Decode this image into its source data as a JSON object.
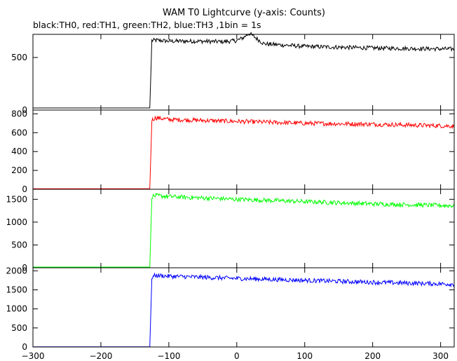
{
  "chart_data": {
    "type": "line",
    "title": "WAM T0 Lightcurve (y-axis: Counts)",
    "subtitle": "black:TH0, red:TH1, green:TH2, blue:TH3 ,1bin = 1s",
    "xlim": [
      -300,
      320
    ],
    "x_ticks": [
      -300,
      -200,
      -100,
      0,
      100,
      200,
      300
    ],
    "x_tick_labels": [
      "−300",
      "−200",
      "−100",
      "0",
      "100",
      "200",
      "300"
    ],
    "grid": false,
    "panels": [
      {
        "name": "TH0",
        "color": "#000000",
        "ylim": [
          0,
          720
        ],
        "y_ticks": [
          0,
          500
        ],
        "y_tick_labels": [
          "0",
          "500"
        ],
        "x": [
          -300,
          -128,
          -125,
          -120,
          -100,
          -60,
          -20,
          0,
          10,
          18,
          25,
          40,
          100,
          200,
          320
        ],
        "y": [
          20,
          20,
          660,
          665,
          655,
          655,
          650,
          660,
          690,
          730,
          700,
          630,
          605,
          590,
          580
        ]
      },
      {
        "name": "TH1",
        "color": "#ff0000",
        "ylim": [
          0,
          840
        ],
        "y_ticks": [
          0,
          200,
          400,
          600,
          800
        ],
        "y_tick_labels": [
          "0",
          "200",
          "400",
          "600",
          "800"
        ],
        "x": [
          -300,
          -128,
          -125,
          -120,
          -100,
          0,
          100,
          200,
          320
        ],
        "y": [
          5,
          5,
          730,
          760,
          740,
          720,
          700,
          690,
          670
        ]
      },
      {
        "name": "TH2",
        "color": "#00ff00",
        "ylim": [
          0,
          1720
        ],
        "y_ticks": [
          0,
          500,
          1000,
          1500
        ],
        "y_tick_labels": [
          "0",
          "500",
          "1000",
          "1500"
        ],
        "x": [
          -300,
          -128,
          -125,
          -120,
          -100,
          0,
          100,
          200,
          320
        ],
        "y": [
          15,
          15,
          1560,
          1580,
          1560,
          1500,
          1450,
          1400,
          1360
        ]
      },
      {
        "name": "TH3",
        "color": "#0000ff",
        "ylim": [
          0,
          2080
        ],
        "y_ticks": [
          0,
          500,
          1000,
          1500,
          2000
        ],
        "y_tick_labels": [
          "0",
          "500",
          "1000",
          "1500",
          "2000"
        ],
        "x": [
          -300,
          -128,
          -125,
          -120,
          -100,
          0,
          100,
          200,
          320
        ],
        "y": [
          5,
          5,
          1830,
          1880,
          1860,
          1800,
          1750,
          1700,
          1650
        ]
      }
    ]
  }
}
